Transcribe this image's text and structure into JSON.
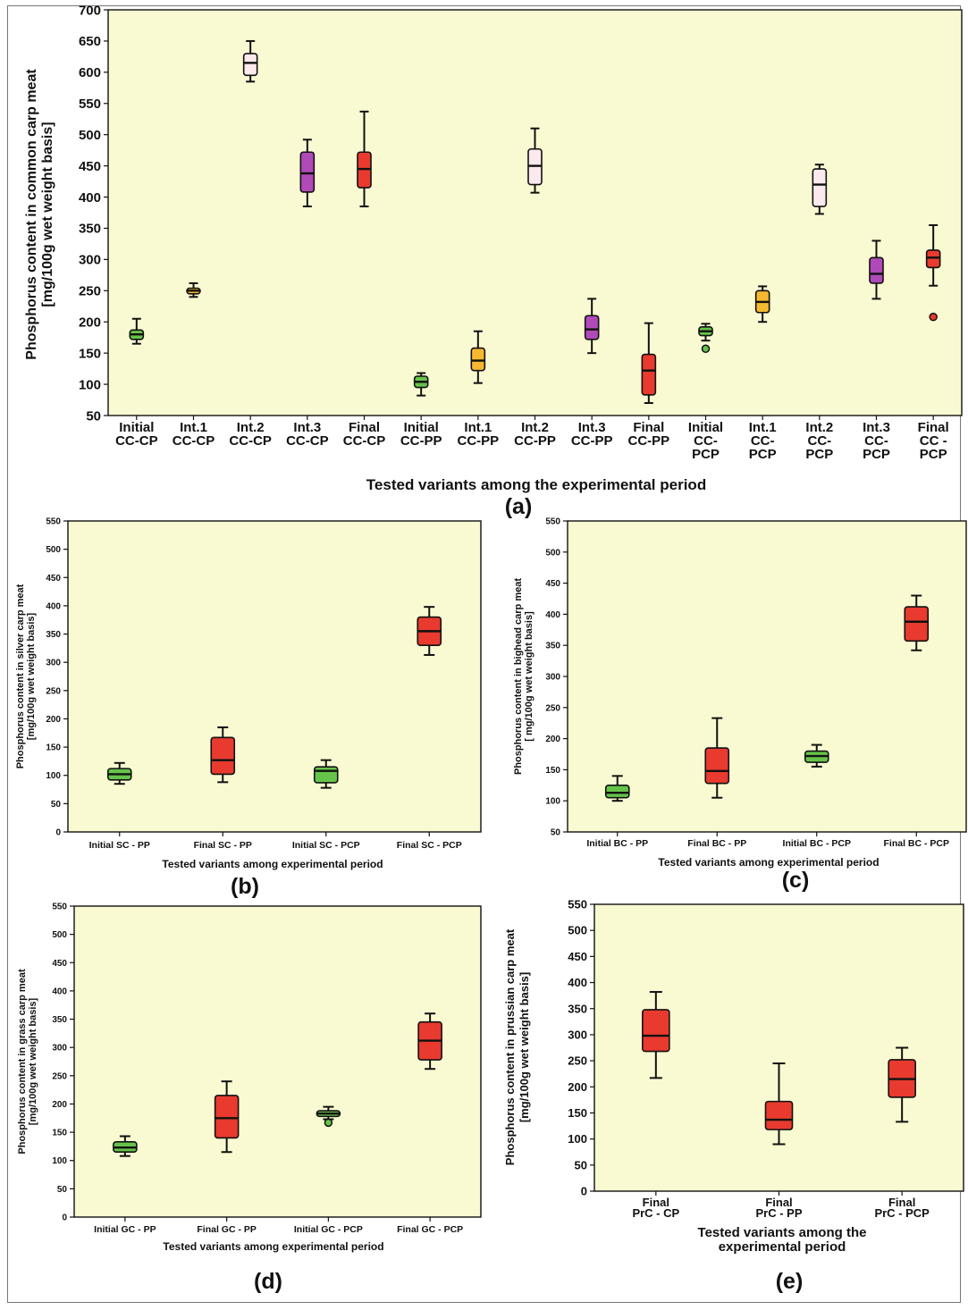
{
  "chart_data": [
    {
      "id": "a",
      "type": "box",
      "panel_label": "(a)",
      "xlabel": "Tested variants among the experimental period",
      "ylabel": "Phosphorus content in common carp meat",
      "ylabel2": "[mg/100g wet weight basis]",
      "ylim": [
        50,
        700
      ],
      "yticks": [
        50,
        100,
        150,
        200,
        250,
        300,
        350,
        400,
        450,
        500,
        550,
        600,
        650,
        700
      ],
      "grid": false,
      "categories": [
        {
          "line1": "Initial",
          "line2": "CC-CP",
          "line3": ""
        },
        {
          "line1": "Int.1",
          "line2": "CC-CP",
          "line3": ""
        },
        {
          "line1": "Int.2",
          "line2": "CC-CP",
          "line3": ""
        },
        {
          "line1": "Int.3",
          "line2": "CC-CP",
          "line3": ""
        },
        {
          "line1": "Final",
          "line2": "CC-CP",
          "line3": ""
        },
        {
          "line1": "Initial",
          "line2": "CC-PP",
          "line3": ""
        },
        {
          "line1": "Int.1",
          "line2": "CC-PP",
          "line3": ""
        },
        {
          "line1": "Int.2",
          "line2": "CC-PP",
          "line3": ""
        },
        {
          "line1": "Int.3",
          "line2": "CC-PP",
          "line3": ""
        },
        {
          "line1": "Final",
          "line2": "CC-PP",
          "line3": ""
        },
        {
          "line1": "Initial",
          "line2": "CC-",
          "line3": "PCP"
        },
        {
          "line1": "Int.1",
          "line2": "CC-",
          "line3": "PCP"
        },
        {
          "line1": "Int.2",
          "line2": "CC-",
          "line3": "PCP"
        },
        {
          "line1": "Int.3",
          "line2": "CC-",
          "line3": "PCP"
        },
        {
          "line1": "Final",
          "line2": "CC -",
          "line3": "PCP"
        }
      ],
      "boxes": [
        {
          "min": 165,
          "q1": 172,
          "median": 180,
          "q3": 187,
          "max": 205,
          "color": "#66c34a",
          "outliers": []
        },
        {
          "min": 240,
          "q1": 245,
          "median": 250,
          "q3": 254,
          "max": 262,
          "color": "#f5b830",
          "outliers": []
        },
        {
          "min": 585,
          "q1": 595,
          "median": 615,
          "q3": 630,
          "max": 650,
          "color": "#fbe9ee",
          "outliers": []
        },
        {
          "min": 385,
          "q1": 408,
          "median": 438,
          "q3": 472,
          "max": 492,
          "color": "#b04ab8",
          "outliers": []
        },
        {
          "min": 385,
          "q1": 415,
          "median": 445,
          "q3": 472,
          "max": 537,
          "color": "#e83a2e",
          "outliers": []
        },
        {
          "min": 82,
          "q1": 95,
          "median": 104,
          "q3": 113,
          "max": 118,
          "color": "#66c34a",
          "outliers": []
        },
        {
          "min": 102,
          "q1": 122,
          "median": 138,
          "q3": 158,
          "max": 185,
          "color": "#f5b830",
          "outliers": []
        },
        {
          "min": 407,
          "q1": 420,
          "median": 450,
          "q3": 477,
          "max": 510,
          "color": "#fbe9ee",
          "outliers": []
        },
        {
          "min": 150,
          "q1": 172,
          "median": 188,
          "q3": 210,
          "max": 237,
          "color": "#b04ab8",
          "outliers": []
        },
        {
          "min": 70,
          "q1": 83,
          "median": 122,
          "q3": 148,
          "max": 198,
          "color": "#e83a2e",
          "outliers": []
        },
        {
          "min": 170,
          "q1": 178,
          "median": 185,
          "q3": 192,
          "max": 197,
          "color": "#66c34a",
          "outliers": [
            157
          ]
        },
        {
          "min": 200,
          "q1": 215,
          "median": 232,
          "q3": 250,
          "max": 257,
          "color": "#f5b830",
          "outliers": []
        },
        {
          "min": 373,
          "q1": 385,
          "median": 420,
          "q3": 445,
          "max": 452,
          "color": "#fbe9ee",
          "outliers": []
        },
        {
          "min": 237,
          "q1": 262,
          "median": 277,
          "q3": 303,
          "max": 330,
          "color": "#b04ab8",
          "outliers": []
        },
        {
          "min": 258,
          "q1": 287,
          "median": 303,
          "q3": 315,
          "max": 355,
          "color": "#e83a2e",
          "outliers": [
            208
          ]
        }
      ]
    },
    {
      "id": "b",
      "type": "box",
      "panel_label": "(b)",
      "xlabel": "Tested variants among experimental period",
      "ylabel": "Phosphorus content in silver carp meat",
      "ylabel2": "[mg/100g wet weight basis]",
      "ylim": [
        0,
        550
      ],
      "yticks": [
        0,
        50,
        100,
        150,
        200,
        250,
        300,
        350,
        400,
        450,
        500,
        550
      ],
      "grid": false,
      "categories": [
        {
          "line1": "Initial SC - PP"
        },
        {
          "line1": "Final SC - PP"
        },
        {
          "line1": "Initial SC - PCP"
        },
        {
          "line1": "Final SC - PCP"
        }
      ],
      "boxes": [
        {
          "min": 85,
          "q1": 92,
          "median": 102,
          "q3": 112,
          "max": 122,
          "color": "#66c34a",
          "outliers": []
        },
        {
          "min": 88,
          "q1": 102,
          "median": 127,
          "q3": 167,
          "max": 185,
          "color": "#e83a2e",
          "outliers": []
        },
        {
          "min": 78,
          "q1": 87,
          "median": 108,
          "q3": 115,
          "max": 127,
          "color": "#66c34a",
          "outliers": []
        },
        {
          "min": 313,
          "q1": 330,
          "median": 355,
          "q3": 380,
          "max": 398,
          "color": "#e83a2e",
          "outliers": []
        }
      ]
    },
    {
      "id": "c",
      "type": "box",
      "panel_label": "(c)",
      "xlabel": "Tested variants among experimental period",
      "ylabel": "Phosphorus content in bighead carp meat",
      "ylabel2": "[ mg/100g wet weight basis]",
      "ylim": [
        50,
        550
      ],
      "yticks": [
        50,
        100,
        150,
        200,
        250,
        300,
        350,
        400,
        450,
        500,
        550
      ],
      "grid": false,
      "categories": [
        {
          "line1": "Initial BC - PP"
        },
        {
          "line1": "Final BC - PP"
        },
        {
          "line1": "Initial BC - PCP"
        },
        {
          "line1": "Final BC - PCP"
        }
      ],
      "boxes": [
        {
          "min": 100,
          "q1": 105,
          "median": 113,
          "q3": 125,
          "max": 140,
          "color": "#66c34a",
          "outliers": []
        },
        {
          "min": 105,
          "q1": 128,
          "median": 148,
          "q3": 185,
          "max": 233,
          "color": "#e83a2e",
          "outliers": []
        },
        {
          "min": 155,
          "q1": 162,
          "median": 172,
          "q3": 180,
          "max": 190,
          "color": "#66c34a",
          "outliers": []
        },
        {
          "min": 342,
          "q1": 357,
          "median": 388,
          "q3": 412,
          "max": 430,
          "color": "#e83a2e",
          "outliers": []
        }
      ]
    },
    {
      "id": "d",
      "type": "box",
      "panel_label": "(d)",
      "xlabel": "Tested variants among experimental period",
      "ylabel": "Phosphorus content in grass carp meat",
      "ylabel2": "[mg/100g wet weight basis]",
      "ylim": [
        0,
        550
      ],
      "yticks": [
        0,
        50,
        100,
        150,
        200,
        250,
        300,
        350,
        400,
        450,
        500,
        550
      ],
      "grid": false,
      "categories": [
        {
          "line1": "Initial GC - PP"
        },
        {
          "line1": "Final GC - PP"
        },
        {
          "line1": "Initial GC - PCP"
        },
        {
          "line1": "Final GC - PCP"
        }
      ],
      "boxes": [
        {
          "min": 108,
          "q1": 115,
          "median": 123,
          "q3": 133,
          "max": 143,
          "color": "#66c34a",
          "outliers": []
        },
        {
          "min": 115,
          "q1": 140,
          "median": 175,
          "q3": 215,
          "max": 240,
          "color": "#e83a2e",
          "outliers": []
        },
        {
          "min": 173,
          "q1": 178,
          "median": 183,
          "q3": 188,
          "max": 195,
          "color": "#66c34a",
          "outliers": [
            167
          ]
        },
        {
          "min": 262,
          "q1": 278,
          "median": 312,
          "q3": 345,
          "max": 360,
          "color": "#e83a2e",
          "outliers": []
        }
      ]
    },
    {
      "id": "e",
      "type": "box",
      "panel_label": "(e)",
      "xlabel": "Tested variants among the",
      "xlabel2": "experimental period",
      "ylabel": "Phosphorus content in prussian carp meat",
      "ylabel2": "[mg/100g wet weight basis]",
      "ylim": [
        0,
        550
      ],
      "yticks": [
        0,
        50,
        100,
        150,
        200,
        250,
        300,
        350,
        400,
        450,
        500,
        550
      ],
      "grid": false,
      "categories": [
        {
          "line1": "Final",
          "line2": "PrC - CP"
        },
        {
          "line1": "Final",
          "line2": "PrC - PP"
        },
        {
          "line1": "Final",
          "line2": "PrC - PCP"
        }
      ],
      "boxes": [
        {
          "min": 217,
          "q1": 268,
          "median": 298,
          "q3": 348,
          "max": 382,
          "color": "#e83a2e",
          "outliers": []
        },
        {
          "min": 90,
          "q1": 118,
          "median": 137,
          "q3": 172,
          "max": 245,
          "color": "#e83a2e",
          "outliers": []
        },
        {
          "min": 133,
          "q1": 180,
          "median": 215,
          "q3": 252,
          "max": 275,
          "color": "#e83a2e",
          "outliers": []
        }
      ]
    }
  ],
  "colors": {
    "plot_background": "#fafad2",
    "axis": "#111111"
  }
}
